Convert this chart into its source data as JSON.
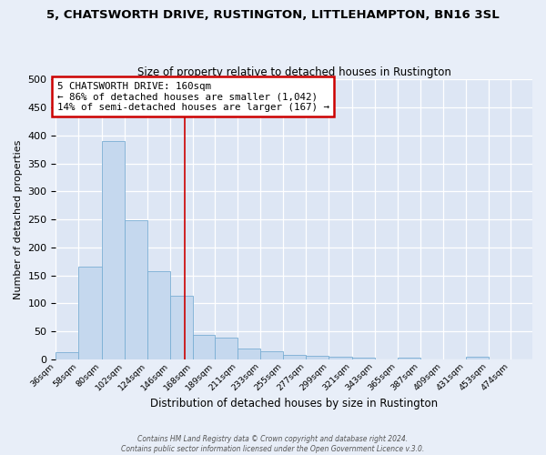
{
  "title_line1": "5, CHATSWORTH DRIVE, RUSTINGTON, LITTLEHAMPTON, BN16 3SL",
  "title_line2": "Size of property relative to detached houses in Rustington",
  "xlabel": "Distribution of detached houses by size in Rustington",
  "ylabel": "Number of detached properties",
  "bin_labels": [
    "36sqm",
    "58sqm",
    "80sqm",
    "102sqm",
    "124sqm",
    "146sqm",
    "168sqm",
    "189sqm",
    "211sqm",
    "233sqm",
    "255sqm",
    "277sqm",
    "299sqm",
    "321sqm",
    "343sqm",
    "365sqm",
    "387sqm",
    "409sqm",
    "431sqm",
    "453sqm",
    "474sqm"
  ],
  "bin_edges": [
    36,
    58,
    80,
    102,
    124,
    146,
    168,
    189,
    211,
    233,
    255,
    277,
    299,
    321,
    343,
    365,
    387,
    409,
    431,
    453,
    474
  ],
  "bar_heights": [
    13,
    165,
    390,
    248,
    158,
    113,
    44,
    39,
    19,
    14,
    9,
    6,
    5,
    3,
    0,
    4,
    0,
    0,
    5,
    0,
    0
  ],
  "bar_color": "#c5d8ee",
  "bar_edge_color": "#7aaed4",
  "property_size": 160,
  "vline_color": "#cc0000",
  "annotation_title": "5 CHATSWORTH DRIVE: 160sqm",
  "annotation_line2": "← 86% of detached houses are smaller (1,042)",
  "annotation_line3": "14% of semi-detached houses are larger (167) →",
  "annotation_box_color": "#cc0000",
  "annotation_text_color": "#000000",
  "ylim": [
    0,
    500
  ],
  "yticks": [
    0,
    50,
    100,
    150,
    200,
    250,
    300,
    350,
    400,
    450,
    500
  ],
  "footer_line1": "Contains HM Land Registry data © Crown copyright and database right 2024.",
  "footer_line2": "Contains public sector information licensed under the Open Government Licence v.3.0.",
  "background_color": "#e8eef8",
  "plot_bg_color": "#dde6f4",
  "title1_fontsize": 9.5,
  "title2_fontsize": 8.5,
  "xlabel_fontsize": 8.5,
  "ylabel_fontsize": 8.0,
  "xtick_fontsize": 6.8,
  "ytick_fontsize": 8.0,
  "annot_fontsize": 7.8,
  "footer_fontsize": 5.5
}
